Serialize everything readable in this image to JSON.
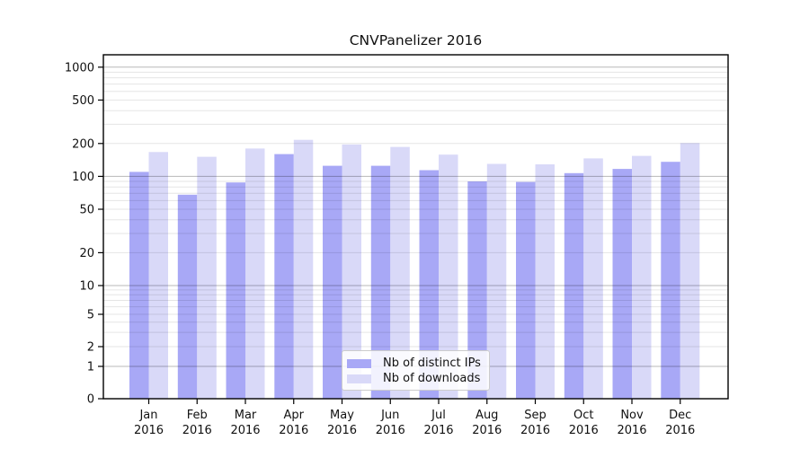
{
  "chart_data": {
    "type": "bar",
    "title": "CNVPanelizer 2016",
    "xlabel": "",
    "ylabel": "",
    "year_label": "2016",
    "categories": [
      "Jan",
      "Feb",
      "Mar",
      "Apr",
      "May",
      "Jun",
      "Jul",
      "Aug",
      "Sep",
      "Oct",
      "Nov",
      "Dec"
    ],
    "series": [
      {
        "name": "Nb of distinct IPs",
        "color": "#a8a8f6",
        "values": [
          110,
          68,
          88,
          160,
          125,
          125,
          114,
          90,
          89,
          107,
          117,
          136
        ]
      },
      {
        "name": "Nb of downloads",
        "color": "#d9d9f8",
        "values": [
          167,
          151,
          180,
          216,
          196,
          186,
          158,
          130,
          129,
          146,
          154,
          202
        ]
      }
    ],
    "yscale": "symlog",
    "yticks": [
      0,
      1,
      2,
      5,
      10,
      20,
      50,
      100,
      200,
      500,
      1000
    ],
    "ylim": [
      0,
      1200
    ],
    "grid": true,
    "grid_major_values": [
      1,
      10,
      100,
      1000
    ],
    "grid_minor_values": [
      2,
      3,
      4,
      5,
      6,
      7,
      8,
      9,
      20,
      30,
      40,
      50,
      60,
      70,
      80,
      90,
      200,
      300,
      400,
      500,
      600,
      700,
      800,
      900
    ],
    "legend_position": "lower-center",
    "axis_color": "#000000",
    "text_color": "#111111",
    "grid_major_color": "rgba(0,0,0,0.28)",
    "grid_minor_color": "rgba(0,0,0,0.10)"
  }
}
